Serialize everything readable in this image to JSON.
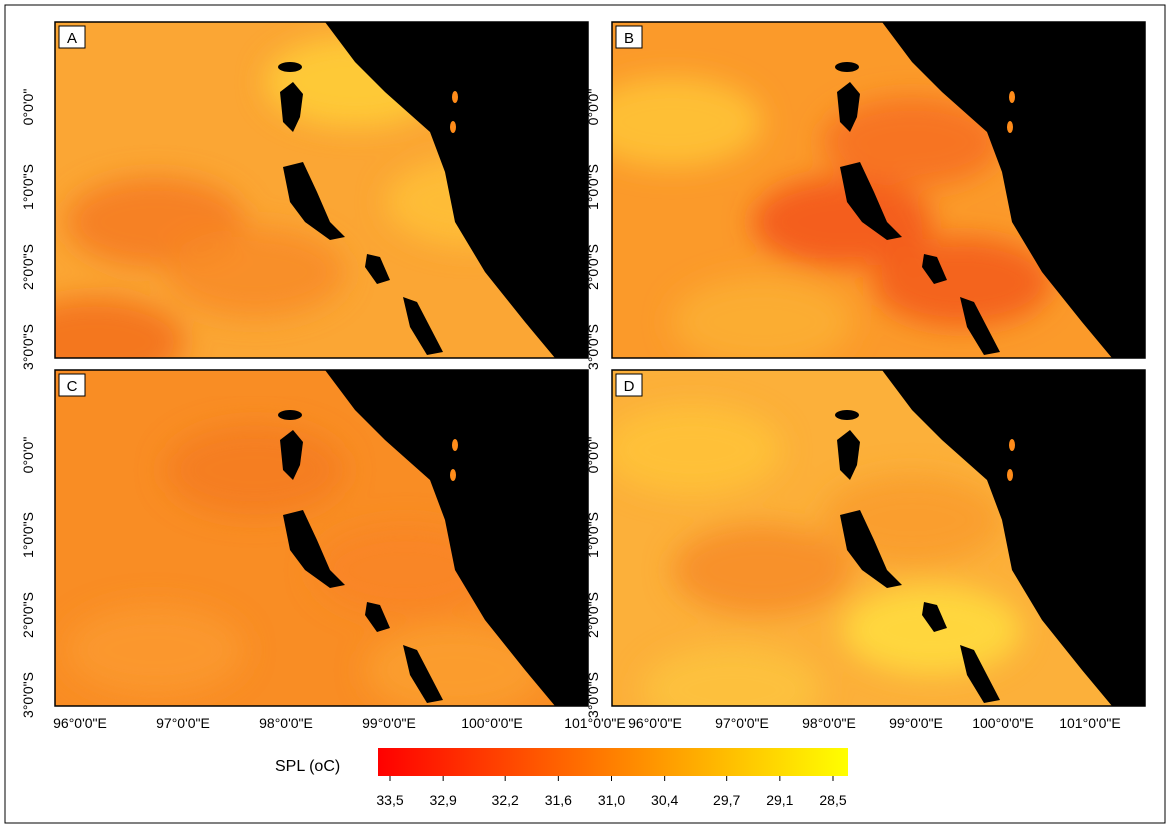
{
  "panels": [
    {
      "label": "A"
    },
    {
      "label": "B"
    },
    {
      "label": "C"
    },
    {
      "label": "D"
    }
  ],
  "lat_labels": [
    "0°0'0\"",
    "1°0'0\"S",
    "2°0'0\"S",
    "3°0'0\"S"
  ],
  "lon_labels": [
    "96°0'0\"E",
    "97°0'0\"E",
    "98°0'0\"E",
    "99°0'0\"E",
    "100°0'0\"E",
    "101°0'0\"E"
  ],
  "legend": {
    "title": "SPL (oC)",
    "colors": [
      "#ff0000",
      "#ffff00"
    ],
    "ticks": [
      {
        "value": 33.5,
        "label": "33,5"
      },
      {
        "value": 32.9,
        "label": "32,9"
      },
      {
        "value": 32.2,
        "label": "32,2"
      },
      {
        "value": 31.6,
        "label": "31,6"
      },
      {
        "value": 31.0,
        "label": "31,0"
      },
      {
        "value": 30.4,
        "label": "30,4"
      },
      {
        "value": 29.7,
        "label": "29,7"
      },
      {
        "value": 29.1,
        "label": "29,1"
      },
      {
        "value": 28.5,
        "label": "28,5"
      }
    ]
  }
}
